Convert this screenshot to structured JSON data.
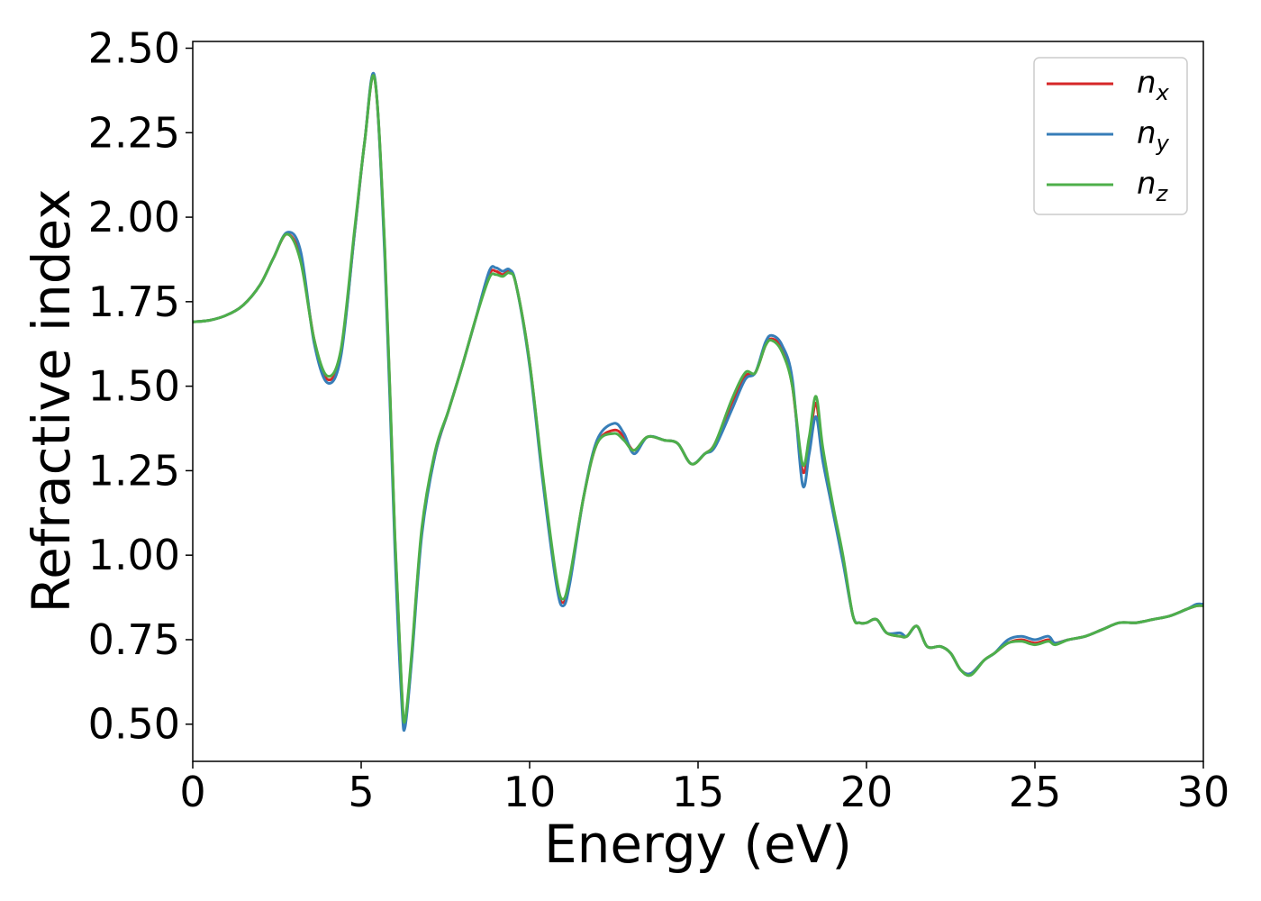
{
  "chart_data": {
    "type": "line",
    "title": "",
    "xlabel": "Energy (eV)",
    "ylabel": "Refractive index",
    "xlim": [
      0,
      30
    ],
    "ylim": [
      0.39,
      2.52
    ],
    "xticks": [
      0,
      5,
      10,
      15,
      20,
      25,
      30
    ],
    "xtick_labels": [
      "0",
      "5",
      "10",
      "15",
      "20",
      "25",
      "30"
    ],
    "yticks": [
      0.5,
      0.75,
      1.0,
      1.25,
      1.5,
      1.75,
      2.0,
      2.25,
      2.5
    ],
    "ytick_labels": [
      "0.50",
      "0.75",
      "1.00",
      "1.25",
      "1.50",
      "1.75",
      "2.00",
      "2.25",
      "2.50"
    ],
    "grid": false,
    "legend_position": "top-right",
    "series": [
      {
        "name": "n_x",
        "legend_base": "n",
        "legend_sub": "x",
        "color": "#d62728",
        "x": [
          0,
          0.5,
          1,
          1.5,
          2,
          2.4,
          2.8,
          3.2,
          3.6,
          4.0,
          4.4,
          4.8,
          5.1,
          5.4,
          5.7,
          6.0,
          6.2,
          6.3,
          6.5,
          6.8,
          7.2,
          7.6,
          8.0,
          8.4,
          8.8,
          9.0,
          9.2,
          9.4,
          9.6,
          10.0,
          10.4,
          10.8,
          11.0,
          11.2,
          11.6,
          12.0,
          12.5,
          12.8,
          13.1,
          13.5,
          14.0,
          14.4,
          14.8,
          15.2,
          15.5,
          16.0,
          16.4,
          16.7,
          17.0,
          17.2,
          17.5,
          17.8,
          18.1,
          18.3,
          18.5,
          18.7,
          19.0,
          19.3,
          19.6,
          19.8,
          20.0,
          20.3,
          20.6,
          21.0,
          21.2,
          21.5,
          21.8,
          22.2,
          22.5,
          22.8,
          23.1,
          23.5,
          23.8,
          24.2,
          24.6,
          25.0,
          25.4,
          25.6,
          26.0,
          26.5,
          27.0,
          27.5,
          28.0,
          28.5,
          29.0,
          29.5,
          29.8,
          30
        ],
        "y": [
          1.69,
          1.695,
          1.71,
          1.74,
          1.8,
          1.88,
          1.95,
          1.88,
          1.64,
          1.52,
          1.6,
          1.95,
          2.22,
          2.41,
          1.9,
          1.05,
          0.6,
          0.5,
          0.7,
          1.07,
          1.3,
          1.43,
          1.56,
          1.7,
          1.83,
          1.84,
          1.83,
          1.84,
          1.8,
          1.57,
          1.22,
          0.92,
          0.86,
          0.93,
          1.17,
          1.33,
          1.37,
          1.35,
          1.31,
          1.35,
          1.34,
          1.33,
          1.27,
          1.3,
          1.33,
          1.45,
          1.53,
          1.54,
          1.62,
          1.64,
          1.61,
          1.5,
          1.25,
          1.33,
          1.45,
          1.3,
          1.14,
          0.99,
          0.82,
          0.8,
          0.8,
          0.81,
          0.77,
          0.76,
          0.76,
          0.79,
          0.73,
          0.73,
          0.71,
          0.66,
          0.65,
          0.69,
          0.71,
          0.74,
          0.75,
          0.74,
          0.75,
          0.74,
          0.75,
          0.76,
          0.78,
          0.8,
          0.8,
          0.81,
          0.82,
          0.84,
          0.85,
          0.85
        ]
      },
      {
        "name": "n_y",
        "legend_base": "n",
        "legend_sub": "y",
        "color": "#377eb8",
        "x": [
          0,
          0.5,
          1,
          1.5,
          2,
          2.4,
          2.8,
          3.2,
          3.6,
          4.0,
          4.4,
          4.8,
          5.1,
          5.4,
          5.7,
          6.0,
          6.2,
          6.3,
          6.5,
          6.8,
          7.2,
          7.6,
          8.0,
          8.4,
          8.8,
          9.0,
          9.2,
          9.4,
          9.6,
          10.0,
          10.4,
          10.8,
          11.0,
          11.2,
          11.6,
          12.0,
          12.5,
          12.8,
          13.1,
          13.5,
          14.0,
          14.4,
          14.8,
          15.2,
          15.5,
          16.0,
          16.4,
          16.7,
          17.0,
          17.2,
          17.5,
          17.8,
          18.1,
          18.3,
          18.5,
          18.7,
          19.0,
          19.3,
          19.6,
          19.8,
          20.0,
          20.3,
          20.6,
          21.0,
          21.2,
          21.5,
          21.8,
          22.2,
          22.5,
          22.8,
          23.1,
          23.5,
          23.8,
          24.2,
          24.6,
          25.0,
          25.4,
          25.6,
          26.0,
          26.5,
          27.0,
          27.5,
          28.0,
          28.5,
          29.0,
          29.5,
          29.8,
          30
        ],
        "y": [
          1.69,
          1.695,
          1.71,
          1.74,
          1.8,
          1.88,
          1.955,
          1.9,
          1.63,
          1.51,
          1.59,
          1.95,
          2.22,
          2.415,
          1.88,
          1.02,
          0.57,
          0.49,
          0.69,
          1.06,
          1.3,
          1.43,
          1.56,
          1.7,
          1.84,
          1.85,
          1.84,
          1.845,
          1.8,
          1.56,
          1.21,
          0.91,
          0.85,
          0.92,
          1.17,
          1.34,
          1.39,
          1.36,
          1.3,
          1.35,
          1.34,
          1.33,
          1.27,
          1.3,
          1.32,
          1.43,
          1.52,
          1.54,
          1.63,
          1.65,
          1.62,
          1.52,
          1.21,
          1.3,
          1.41,
          1.28,
          1.13,
          0.98,
          0.82,
          0.8,
          0.8,
          0.81,
          0.77,
          0.77,
          0.76,
          0.79,
          0.73,
          0.73,
          0.71,
          0.66,
          0.65,
          0.69,
          0.71,
          0.75,
          0.76,
          0.75,
          0.76,
          0.74,
          0.75,
          0.76,
          0.78,
          0.8,
          0.8,
          0.81,
          0.82,
          0.84,
          0.855,
          0.855
        ]
      },
      {
        "name": "n_z",
        "legend_base": "n",
        "legend_sub": "z",
        "color": "#4daf4a",
        "x": [
          0,
          0.5,
          1,
          1.5,
          2,
          2.4,
          2.8,
          3.2,
          3.6,
          4.0,
          4.4,
          4.8,
          5.1,
          5.4,
          5.7,
          6.0,
          6.2,
          6.3,
          6.5,
          6.8,
          7.2,
          7.6,
          8.0,
          8.4,
          8.8,
          9.0,
          9.2,
          9.4,
          9.6,
          10.0,
          10.4,
          10.8,
          11.0,
          11.2,
          11.6,
          12.0,
          12.5,
          12.8,
          13.1,
          13.5,
          14.0,
          14.4,
          14.8,
          15.2,
          15.5,
          16.0,
          16.4,
          16.7,
          17.0,
          17.2,
          17.5,
          17.8,
          18.1,
          18.3,
          18.5,
          18.7,
          19.0,
          19.3,
          19.6,
          19.8,
          20.0,
          20.3,
          20.6,
          21.0,
          21.2,
          21.5,
          21.8,
          22.2,
          22.5,
          22.8,
          23.1,
          23.5,
          23.8,
          24.2,
          24.6,
          25.0,
          25.4,
          25.6,
          26.0,
          26.5,
          27.0,
          27.5,
          28.0,
          28.5,
          29.0,
          29.5,
          29.8,
          30
        ],
        "y": [
          1.69,
          1.695,
          1.71,
          1.74,
          1.8,
          1.88,
          1.95,
          1.87,
          1.64,
          1.53,
          1.61,
          1.96,
          2.22,
          2.41,
          1.91,
          1.06,
          0.61,
          0.51,
          0.71,
          1.08,
          1.31,
          1.43,
          1.56,
          1.7,
          1.82,
          1.83,
          1.825,
          1.835,
          1.8,
          1.57,
          1.23,
          0.93,
          0.87,
          0.94,
          1.17,
          1.33,
          1.36,
          1.34,
          1.31,
          1.35,
          1.34,
          1.33,
          1.27,
          1.3,
          1.33,
          1.46,
          1.54,
          1.54,
          1.62,
          1.635,
          1.6,
          1.5,
          1.27,
          1.35,
          1.47,
          1.32,
          1.15,
          1.0,
          0.82,
          0.8,
          0.8,
          0.81,
          0.77,
          0.76,
          0.76,
          0.79,
          0.73,
          0.73,
          0.71,
          0.66,
          0.645,
          0.69,
          0.71,
          0.74,
          0.745,
          0.735,
          0.745,
          0.735,
          0.75,
          0.76,
          0.78,
          0.8,
          0.8,
          0.81,
          0.82,
          0.84,
          0.85,
          0.85
        ]
      }
    ]
  }
}
